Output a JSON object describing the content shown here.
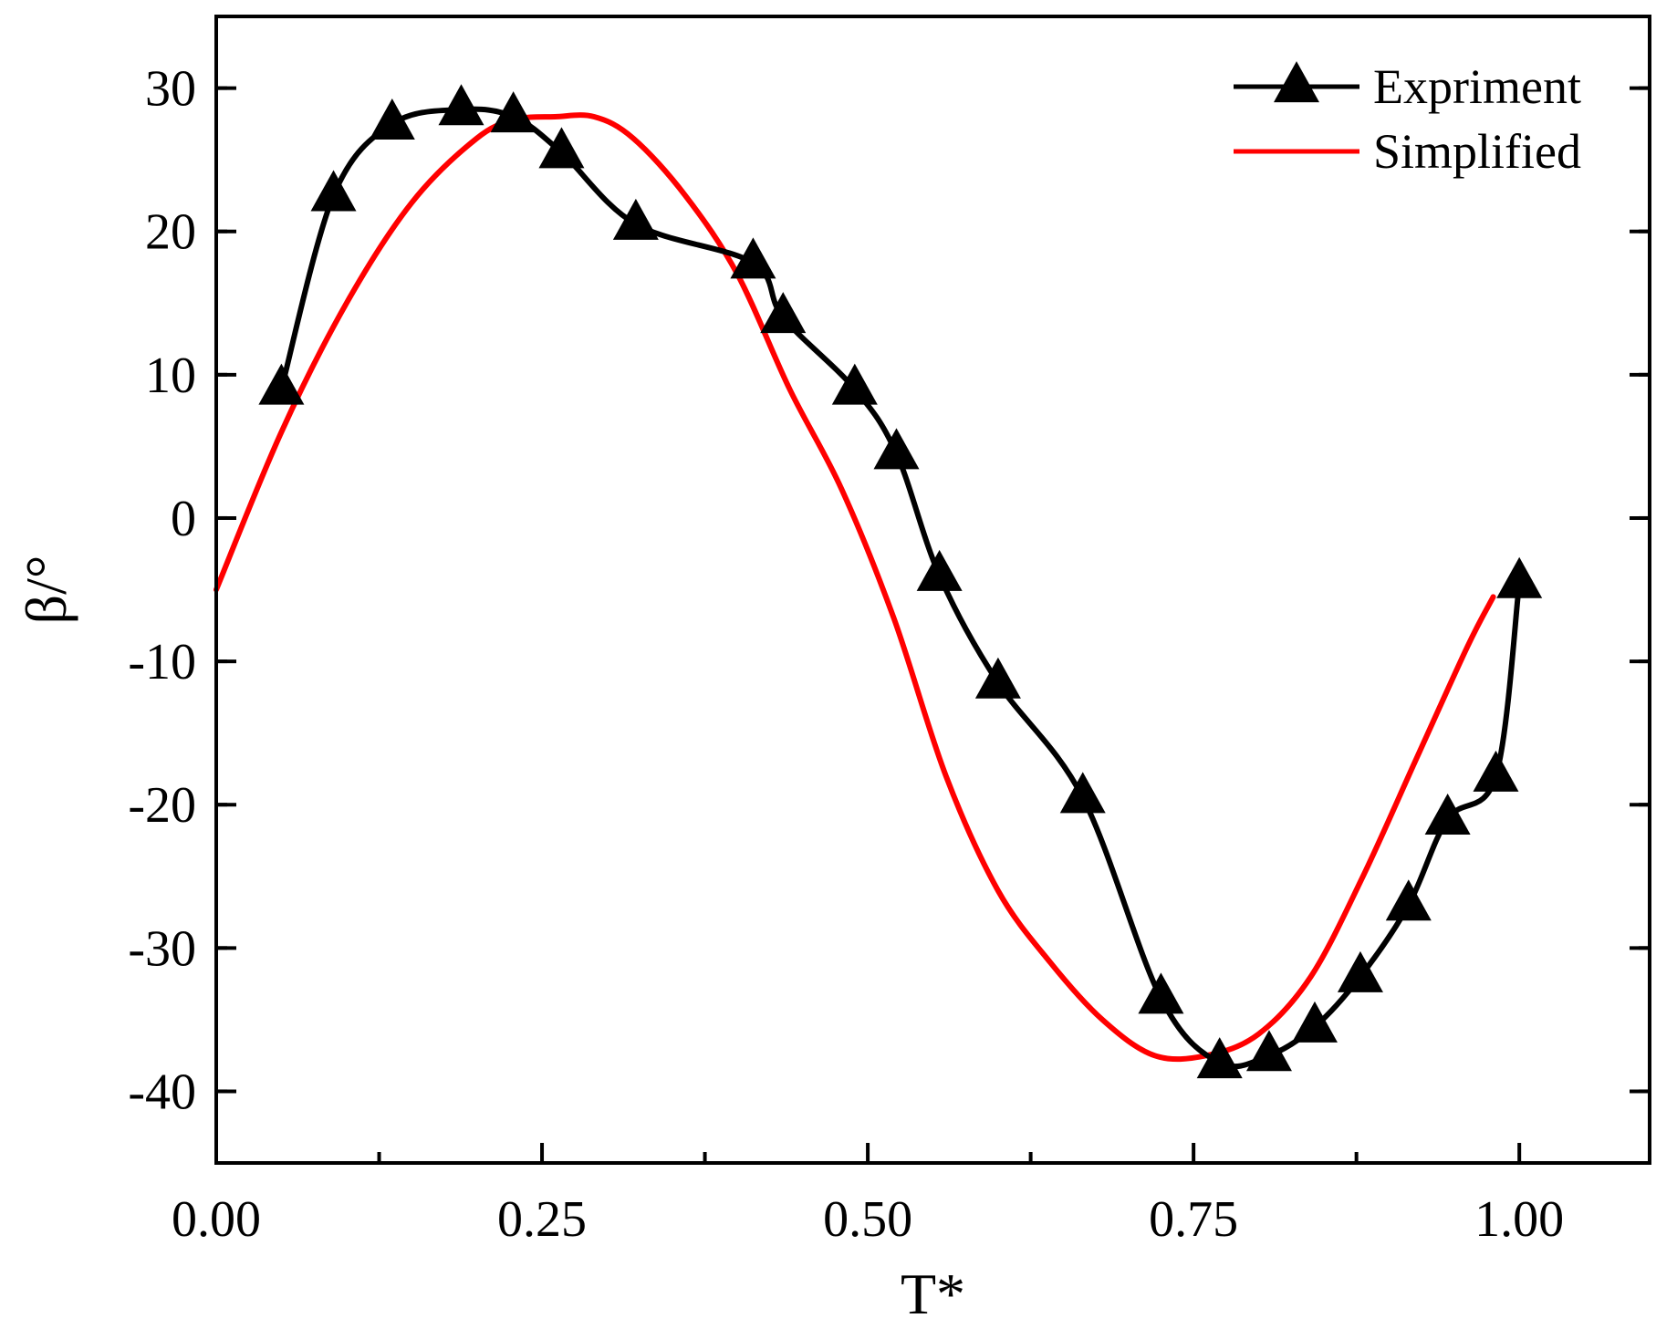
{
  "chart_data": {
    "type": "line",
    "title": "",
    "xlabel": "T*",
    "ylabel": "β/°",
    "xlim": [
      0.0,
      1.1
    ],
    "ylim": [
      -45,
      35
    ],
    "xticks": [
      0.0,
      0.25,
      0.5,
      0.75,
      1.0
    ],
    "xtick_labels": [
      "0.00",
      "0.25",
      "0.50",
      "0.75",
      "1.00"
    ],
    "yticks": [
      30,
      20,
      10,
      0,
      -10,
      -20,
      -30,
      -40
    ],
    "ytick_labels": [
      "30",
      "20",
      "10",
      "0",
      "-10",
      "-20",
      "-30",
      "-40"
    ],
    "legend_position": "top-right",
    "series": [
      {
        "name": "Expriment",
        "color": "#000000",
        "marker": "triangle",
        "x": [
          0.05,
          0.09,
          0.135,
          0.188,
          0.228,
          0.265,
          0.322,
          0.412,
          0.435,
          0.49,
          0.522,
          0.555,
          0.6,
          0.665,
          0.725,
          0.77,
          0.808,
          0.843,
          0.878,
          0.915,
          0.945,
          0.982,
          1.0
        ],
        "y": [
          9,
          22.5,
          27.5,
          28.5,
          28,
          25.5,
          20.5,
          17.8,
          14,
          9,
          4.5,
          -4,
          -11.5,
          -19.5,
          -33.5,
          -38,
          -37.5,
          -35.5,
          -32,
          -27,
          -21,
          -18,
          -4.5
        ]
      },
      {
        "name": "Simplified",
        "color": "#ff0000",
        "marker": "none",
        "x": [
          0.0,
          0.05,
          0.1,
          0.15,
          0.2,
          0.23,
          0.26,
          0.29,
          0.32,
          0.36,
          0.4,
          0.44,
          0.48,
          0.52,
          0.56,
          0.6,
          0.64,
          0.68,
          0.72,
          0.76,
          0.8,
          0.84,
          0.88,
          0.92,
          0.96,
          0.98
        ],
        "y": [
          -5,
          6,
          15,
          22,
          26.5,
          27.8,
          28,
          28,
          26.5,
          22.5,
          17,
          9,
          2,
          -7,
          -18,
          -26,
          -31,
          -35,
          -37.5,
          -37.5,
          -36,
          -32,
          -25,
          -17,
          -9,
          -5.5
        ]
      }
    ]
  }
}
